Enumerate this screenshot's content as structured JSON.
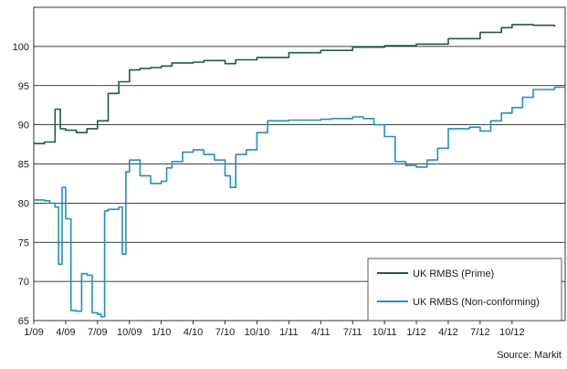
{
  "chart_data": {
    "type": "line",
    "ylim": [
      65,
      105
    ],
    "yticks": [
      65,
      70,
      75,
      80,
      85,
      90,
      95,
      100
    ],
    "xlim_months": [
      "1/09",
      "3/13"
    ],
    "xtick_labels": [
      "1/09",
      "4/09",
      "7/09",
      "10/09",
      "1/10",
      "4/10",
      "7/10",
      "10/10",
      "1/11",
      "4/11",
      "7/11",
      "10/11",
      "1/12",
      "4/12",
      "7/12",
      "10/12"
    ],
    "grid": "horizontal",
    "legend_position": "bottom-right",
    "source": "Source: Markit",
    "series": [
      {
        "name": "UK RMBS (Prime)",
        "color": "#1e5c3a",
        "points": [
          [
            "1/09",
            87.6
          ],
          [
            "2/09",
            87.8
          ],
          [
            "3/09",
            92.0
          ],
          [
            "3/09",
            89.5
          ],
          [
            "4/09",
            89.3
          ],
          [
            "5/09",
            89.0
          ],
          [
            "6/09",
            89.5
          ],
          [
            "7/09",
            90.5
          ],
          [
            "8/09",
            94.0
          ],
          [
            "9/09",
            95.5
          ],
          [
            "10/09",
            97.0
          ],
          [
            "11/09",
            97.2
          ],
          [
            "12/09",
            97.3
          ],
          [
            "1/10",
            97.5
          ],
          [
            "2/10",
            97.9
          ],
          [
            "4/10",
            98.0
          ],
          [
            "5/10",
            98.2
          ],
          [
            "7/10",
            97.8
          ],
          [
            "8/10",
            98.3
          ],
          [
            "10/10",
            98.6
          ],
          [
            "1/11",
            99.2
          ],
          [
            "4/11",
            99.5
          ],
          [
            "7/11",
            99.9
          ],
          [
            "10/11",
            100.1
          ],
          [
            "1/12",
            100.3
          ],
          [
            "4/12",
            101.0
          ],
          [
            "7/12",
            101.8
          ],
          [
            "9/12",
            102.4
          ],
          [
            "10/12",
            102.8
          ],
          [
            "12/12",
            102.7
          ],
          [
            "2/13",
            102.5
          ]
        ]
      },
      {
        "name": "UK RMBS (Non-conforming)",
        "color": "#1b8fcf",
        "points": [
          [
            "1/09",
            80.4
          ],
          [
            "2/09",
            80.3
          ],
          [
            "2/09",
            80.0
          ],
          [
            "3/09",
            79.5
          ],
          [
            "3/09",
            72.2
          ],
          [
            "3/09",
            82.0
          ],
          [
            "4/09",
            78.0
          ],
          [
            "4/09",
            66.3
          ],
          [
            "5/09",
            66.2
          ],
          [
            "5/09",
            71.0
          ],
          [
            "6/09",
            70.8
          ],
          [
            "6/09",
            66.0
          ],
          [
            "7/09",
            65.8
          ],
          [
            "7/09",
            65.5
          ],
          [
            "7/09",
            79.0
          ],
          [
            "8/09",
            79.2
          ],
          [
            "9/09",
            79.5
          ],
          [
            "9/09",
            73.5
          ],
          [
            "9/09",
            84.0
          ],
          [
            "10/09",
            85.5
          ],
          [
            "11/09",
            83.5
          ],
          [
            "12/09",
            82.5
          ],
          [
            "1/10",
            82.8
          ],
          [
            "1/10",
            84.5
          ],
          [
            "2/10",
            85.3
          ],
          [
            "3/10",
            86.5
          ],
          [
            "4/10",
            86.8
          ],
          [
            "5/10",
            86.2
          ],
          [
            "6/10",
            85.5
          ],
          [
            "7/10",
            83.5
          ],
          [
            "7/10",
            82.0
          ],
          [
            "8/10",
            86.2
          ],
          [
            "9/10",
            86.8
          ],
          [
            "10/10",
            89.0
          ],
          [
            "11/10",
            90.5
          ],
          [
            "1/11",
            90.6
          ],
          [
            "4/11",
            90.7
          ],
          [
            "5/11",
            90.8
          ],
          [
            "7/11",
            91.0
          ],
          [
            "8/11",
            90.8
          ],
          [
            "9/11",
            90.0
          ],
          [
            "10/11",
            88.5
          ],
          [
            "11/11",
            85.3
          ],
          [
            "12/11",
            84.8
          ],
          [
            "1/12",
            84.6
          ],
          [
            "2/12",
            85.5
          ],
          [
            "3/12",
            87.0
          ],
          [
            "4/12",
            89.5
          ],
          [
            "6/12",
            89.7
          ],
          [
            "7/12",
            89.2
          ],
          [
            "8/12",
            90.5
          ],
          [
            "9/12",
            91.5
          ],
          [
            "10/12",
            92.2
          ],
          [
            "11/12",
            93.5
          ],
          [
            "12/12",
            94.5
          ],
          [
            "2/13",
            94.8
          ],
          [
            "3/13",
            94.6
          ]
        ]
      }
    ]
  }
}
